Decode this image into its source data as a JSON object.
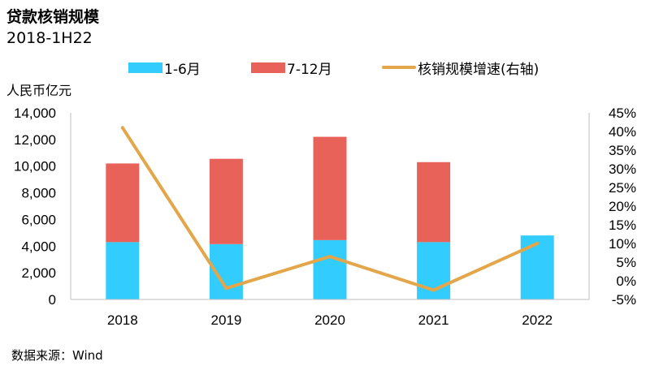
{
  "title": "贷款核销规模",
  "subtitle": "2018-1H22",
  "unit_label": "人民币亿元",
  "source": "数据来源：Wind",
  "colors": {
    "h1": "#33CCFF",
    "h2": "#E8625A",
    "growth": "#E3A64A",
    "axis": "#BFBFBF"
  },
  "chart_data": {
    "type": "bar",
    "stacked": true,
    "categories": [
      "2018",
      "2019",
      "2020",
      "2021",
      "2022"
    ],
    "series": [
      {
        "name": "1-6月",
        "values": [
          4300,
          4150,
          4450,
          4300,
          4800
        ],
        "axis": "left"
      },
      {
        "name": "7-12月",
        "values": [
          5900,
          6400,
          7750,
          6000,
          0
        ],
        "axis": "left"
      },
      {
        "name": "核销规模增速(右轴)",
        "type": "line",
        "values": [
          0.41,
          -0.02,
          0.065,
          -0.025,
          0.1
        ],
        "axis": "right"
      }
    ],
    "ylim": [
      0,
      14000
    ],
    "yticks": [
      "0",
      "2,000",
      "4,000",
      "6,000",
      "8,000",
      "10,000",
      "12,000",
      "14,000"
    ],
    "y2lim": [
      -0.05,
      0.45
    ],
    "y2ticks": [
      "-5%",
      "0%",
      "5%",
      "10%",
      "15%",
      "20%",
      "25%",
      "30%",
      "35%",
      "40%",
      "45%"
    ],
    "legend_position": "top",
    "grid": false
  }
}
